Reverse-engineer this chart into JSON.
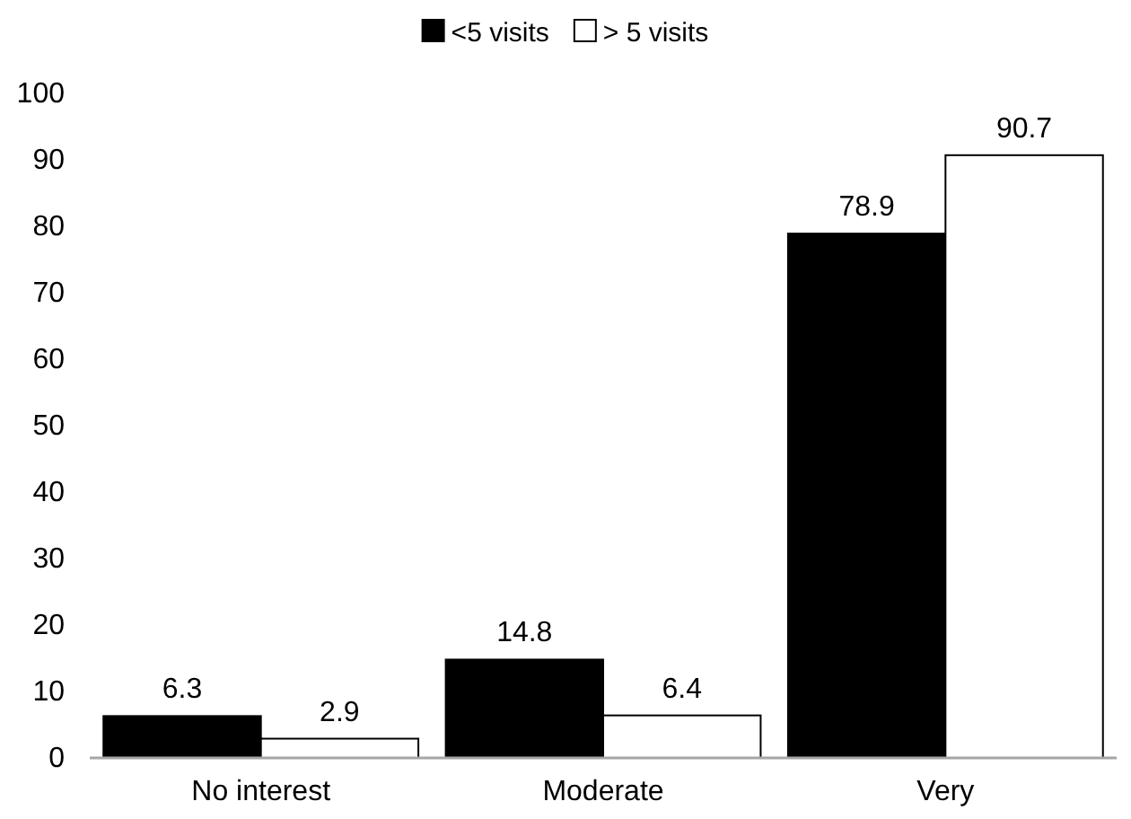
{
  "chart_data": {
    "type": "bar",
    "categories": [
      "No interest",
      "Moderate",
      "Very"
    ],
    "series": [
      {
        "name": "<5 visits",
        "color": "#000000",
        "values": [
          6.3,
          14.8,
          78.9
        ]
      },
      {
        "name": "> 5 visits",
        "color": "#ffffff",
        "values": [
          2.9,
          6.4,
          90.7
        ]
      }
    ],
    "ylim": [
      0,
      100
    ],
    "yticks": [
      0,
      10,
      20,
      30,
      40,
      50,
      60,
      70,
      80,
      90,
      100
    ],
    "data_labels": true,
    "legend": "top",
    "grid": false
  }
}
